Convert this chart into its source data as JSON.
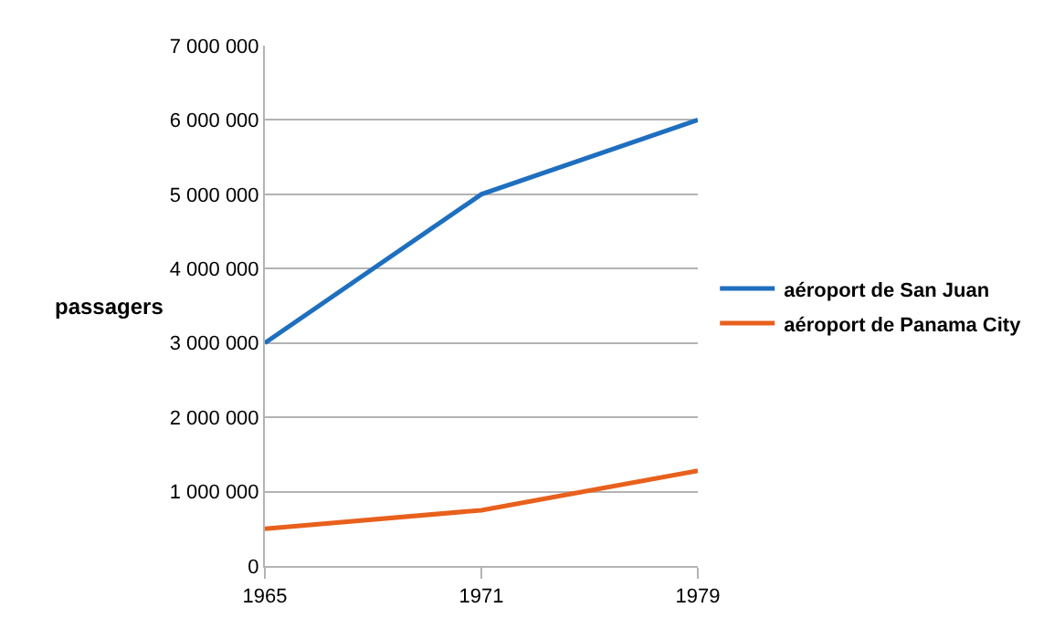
{
  "chart_data": {
    "type": "line",
    "ylabel": "passagers",
    "categories": [
      "1965",
      "1971",
      "1979"
    ],
    "series": [
      {
        "name": "aéroport de San Juan",
        "color": "#1f6fbf",
        "values": [
          3000000,
          5000000,
          6000000
        ]
      },
      {
        "name": "aéroport de Panama City",
        "color": "#e8601c",
        "values": [
          500000,
          750000,
          1280000
        ]
      }
    ],
    "ylim": [
      0,
      7000000
    ],
    "yticks": [
      {
        "value": 0,
        "label": "0"
      },
      {
        "value": 1000000,
        "label": "1 000 000"
      },
      {
        "value": 2000000,
        "label": "2 000 000"
      },
      {
        "value": 3000000,
        "label": "3 000 000"
      },
      {
        "value": 4000000,
        "label": "4 000 000"
      },
      {
        "value": 5000000,
        "label": "5 000 000"
      },
      {
        "value": 6000000,
        "label": "6 000 000"
      },
      {
        "value": 7000000,
        "label": "7 000 000"
      }
    ],
    "grid": "y",
    "legend": "right",
    "marker": "none",
    "line_style": "solid"
  }
}
